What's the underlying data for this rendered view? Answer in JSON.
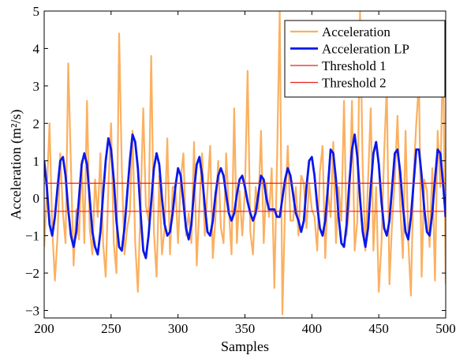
{
  "chart_data": {
    "type": "line",
    "xlabel": "Samples",
    "ylabel": "Acceleration (m²/s)",
    "xlim": [
      200,
      500
    ],
    "ylim": [
      -3.2,
      5
    ],
    "xticks": [
      "200",
      "250",
      "300",
      "350",
      "400",
      "450",
      "500"
    ],
    "yticks": [
      "5",
      "4",
      "3",
      "2",
      "1",
      "0",
      "-1",
      "-2",
      "-3"
    ],
    "grid": false,
    "legend_position": "top-right",
    "series": [
      {
        "name": "Acceleration",
        "color": "#fbb060",
        "x": [
          200,
          202,
          204,
          206,
          208,
          210,
          212,
          214,
          216,
          218,
          220,
          222,
          224,
          226,
          228,
          230,
          232,
          234,
          236,
          238,
          240,
          242,
          244,
          246,
          248,
          250,
          252,
          254,
          256,
          258,
          260,
          262,
          264,
          266,
          268,
          270,
          272,
          274,
          276,
          278,
          280,
          282,
          284,
          286,
          288,
          290,
          292,
          294,
          296,
          298,
          300,
          302,
          304,
          306,
          308,
          310,
          312,
          314,
          316,
          318,
          320,
          322,
          324,
          326,
          328,
          330,
          332,
          334,
          336,
          338,
          340,
          342,
          344,
          346,
          348,
          350,
          352,
          354,
          356,
          358,
          360,
          362,
          364,
          366,
          368,
          370,
          372,
          374,
          376,
          378,
          380,
          382,
          384,
          386,
          388,
          390,
          392,
          394,
          396,
          398,
          400,
          402,
          404,
          406,
          408,
          410,
          412,
          414,
          416,
          418,
          420,
          422,
          424,
          426,
          428,
          430,
          432,
          434,
          436,
          438,
          440,
          442,
          444,
          446,
          448,
          450,
          452,
          454,
          456,
          458,
          460,
          462,
          464,
          466,
          468,
          470,
          472,
          474,
          476,
          478,
          480,
          482,
          484,
          486,
          488,
          490,
          492,
          494,
          496,
          498,
          500
        ],
        "y": [
          -1.3,
          0.2,
          2.0,
          -0.8,
          -2.2,
          -1.0,
          1.2,
          -0.4,
          -1.2,
          3.6,
          0.9,
          -1.8,
          -0.3,
          -1.1,
          1.0,
          -1.2,
          2.6,
          -0.8,
          -1.5,
          0.5,
          -0.5,
          1.2,
          -1.2,
          -2.1,
          0.3,
          2.0,
          -1.2,
          -2.0,
          4.4,
          0.8,
          -1.5,
          -0.8,
          -0.4,
          1.8,
          -1.2,
          -2.5,
          -0.2,
          2.4,
          -0.2,
          -0.6,
          3.8,
          -0.9,
          -2.1,
          0.6,
          -1.5,
          -0.8,
          1.6,
          -1.5,
          0.3,
          0.3,
          -1.2,
          0.5,
          1.2,
          -1.0,
          -0.4,
          -1.2,
          1.5,
          -1.8,
          -0.2,
          1.2,
          -1.0,
          0.2,
          1.4,
          -1.6,
          -0.5,
          1.0,
          -0.8,
          -1.2,
          1.2,
          -0.3,
          -1.5,
          2.4,
          -1.2,
          0.2,
          -1.0,
          0.2,
          3.4,
          -0.9,
          -1.5,
          0.3,
          -0.3,
          1.8,
          -1.2,
          0.4,
          -0.5,
          0.8,
          -2.4,
          1.0,
          5.0,
          -3.1,
          -0.2,
          1.4,
          -0.6,
          -0.6,
          0.3,
          -1.0,
          0.6,
          0.4,
          -0.8,
          0.4,
          -0.3,
          -0.5,
          -1.4,
          0.7,
          1.4,
          -1.6,
          0.2,
          -0.5,
          1.5,
          -1.2,
          0.3,
          -0.6,
          2.6,
          -1.0,
          -0.2,
          2.6,
          -1.4,
          -0.6,
          5.0,
          0.8,
          -1.4,
          0.5,
          2.4,
          -1.4,
          0.3,
          -2.5,
          -1.2,
          1.2,
          3.0,
          -2.3,
          -0.6,
          0.5,
          2.2,
          -0.2,
          -1.6,
          1.8,
          -1.1,
          -2.6,
          0.6,
          2.0,
          3.1,
          -2.1,
          0.5,
          0.2,
          -1.3,
          0.8,
          -2.2,
          1.8,
          0.3,
          4.2,
          -2.3
        ]
      },
      {
        "name": "Acceleration LP",
        "color": "#0a18ea",
        "x": [
          200,
          202,
          204,
          206,
          208,
          210,
          212,
          214,
          216,
          218,
          220,
          222,
          224,
          226,
          228,
          230,
          232,
          234,
          236,
          238,
          240,
          242,
          244,
          246,
          248,
          250,
          252,
          254,
          256,
          258,
          260,
          262,
          264,
          266,
          268,
          270,
          272,
          274,
          276,
          278,
          280,
          282,
          284,
          286,
          288,
          290,
          292,
          294,
          296,
          298,
          300,
          302,
          304,
          306,
          308,
          310,
          312,
          314,
          316,
          318,
          320,
          322,
          324,
          326,
          328,
          330,
          332,
          334,
          336,
          338,
          340,
          342,
          344,
          346,
          348,
          350,
          352,
          354,
          356,
          358,
          360,
          362,
          364,
          366,
          368,
          370,
          372,
          374,
          376,
          378,
          380,
          382,
          384,
          386,
          388,
          390,
          392,
          394,
          396,
          398,
          400,
          402,
          404,
          406,
          408,
          410,
          412,
          414,
          416,
          418,
          420,
          422,
          424,
          426,
          428,
          430,
          432,
          434,
          436,
          438,
          440,
          442,
          444,
          446,
          448,
          450,
          452,
          454,
          456,
          458,
          460,
          462,
          464,
          466,
          468,
          470,
          472,
          474,
          476,
          478,
          480,
          482,
          484,
          486,
          488,
          490,
          492,
          494,
          496,
          498,
          500
        ],
        "y": [
          1.0,
          0.3,
          -0.7,
          -1.0,
          -0.5,
          0.3,
          1.0,
          1.1,
          0.6,
          -0.3,
          -1.0,
          -1.3,
          -0.9,
          0.0,
          0.9,
          1.2,
          0.9,
          0.0,
          -0.9,
          -1.3,
          -1.5,
          -0.9,
          0.1,
          1.0,
          1.6,
          1.3,
          0.5,
          -0.6,
          -1.3,
          -1.4,
          -0.8,
          0.1,
          1.0,
          1.7,
          1.5,
          0.8,
          -0.4,
          -1.4,
          -1.6,
          -1.0,
          -0.1,
          0.8,
          1.2,
          0.9,
          0.0,
          -0.7,
          -1.0,
          -0.9,
          -0.4,
          0.3,
          0.8,
          0.6,
          -0.1,
          -0.8,
          -1.1,
          -0.7,
          0.2,
          0.9,
          1.1,
          0.6,
          -0.2,
          -0.9,
          -1.0,
          -0.6,
          0.1,
          0.6,
          0.8,
          0.6,
          0.1,
          -0.4,
          -0.6,
          -0.4,
          0.1,
          0.5,
          0.6,
          0.3,
          -0.1,
          -0.4,
          -0.6,
          -0.4,
          0.1,
          0.6,
          0.5,
          0.0,
          -0.3,
          -0.3,
          -0.3,
          -0.5,
          -0.5,
          0.0,
          0.5,
          0.8,
          0.6,
          0.1,
          -0.4,
          -0.6,
          -0.9,
          -0.6,
          0.3,
          1.0,
          1.1,
          0.6,
          -0.2,
          -0.8,
          -1.0,
          -0.6,
          0.3,
          1.3,
          1.2,
          0.5,
          -0.5,
          -1.2,
          -1.3,
          -0.7,
          0.4,
          1.3,
          1.7,
          1.1,
          0.0,
          -0.9,
          -1.3,
          -0.8,
          0.3,
          1.2,
          1.5,
          0.9,
          -0.1,
          -0.8,
          -1.0,
          -0.6,
          0.3,
          1.2,
          1.3,
          0.7,
          -0.2,
          -0.9,
          -1.1,
          -0.5,
          0.4,
          1.3,
          1.3,
          0.6,
          -0.3,
          -0.9,
          -1.0,
          -0.4,
          0.5,
          1.3,
          1.2,
          0.4,
          -0.5
        ]
      },
      {
        "name": "Threshold 1",
        "color": "#e8201c",
        "y": 0.4
      },
      {
        "name": "Threshold 2",
        "color": "#e8201c",
        "y": -0.35
      }
    ]
  }
}
